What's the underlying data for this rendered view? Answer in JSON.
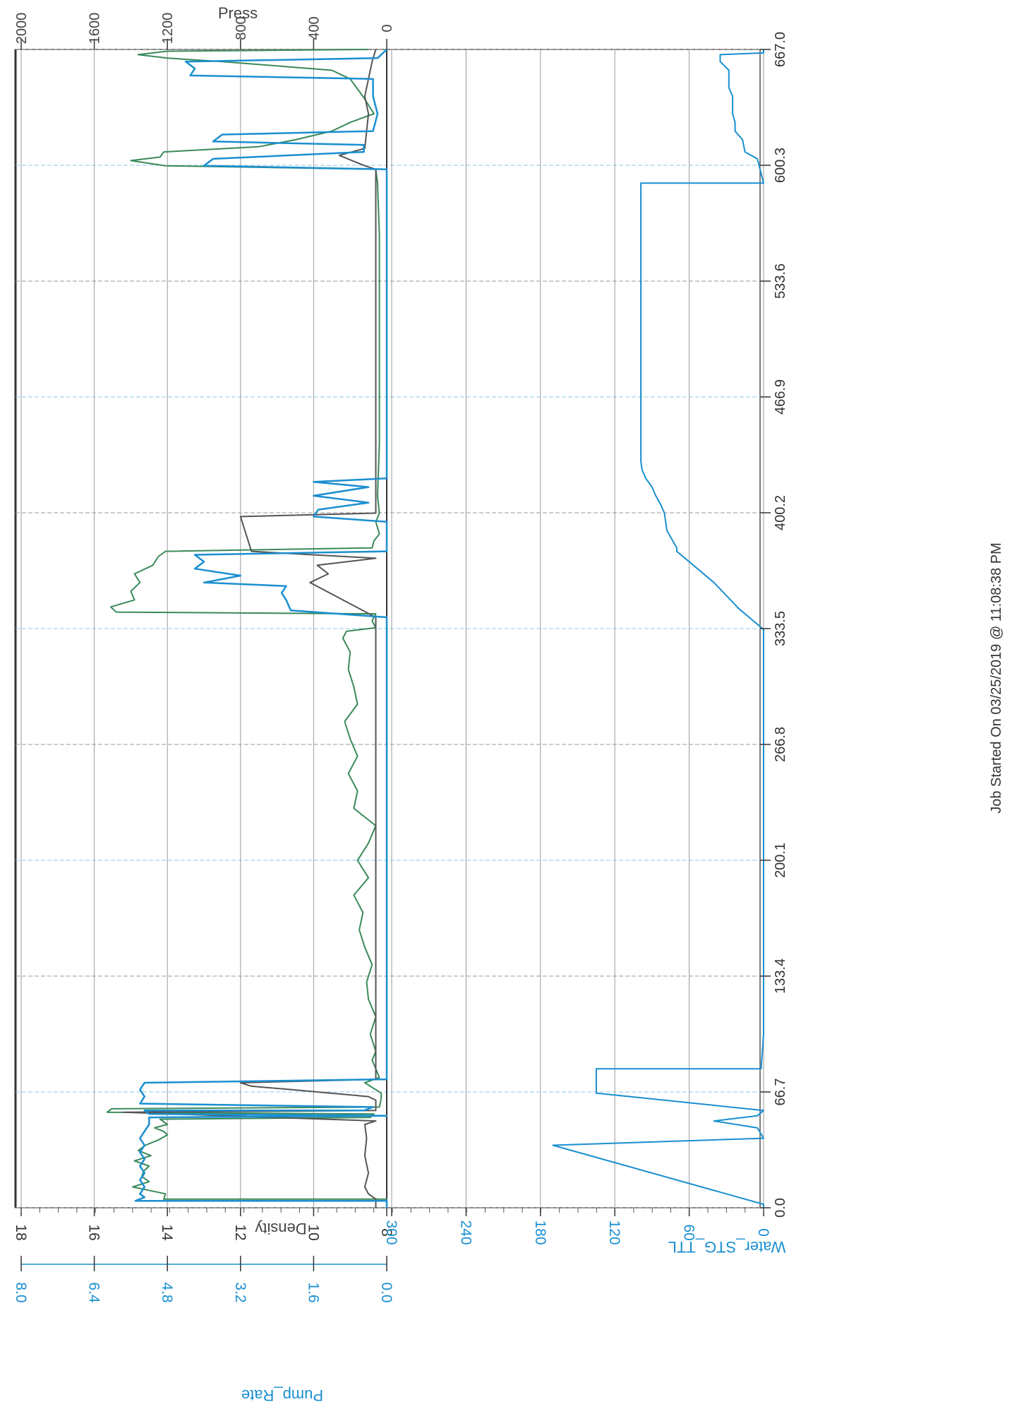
{
  "footer_text": "Job Started On 03/25/2019 @ 11:08:38 PM",
  "chart_data": {
    "type": "line",
    "orientation": "rotated-90-clockwise",
    "time_axis": {
      "ticks": [
        "0.0",
        "66.7",
        "133.4",
        "200.1",
        "266.8",
        "333.5",
        "400.2",
        "466.9",
        "533.6",
        "600.3",
        "667.0"
      ],
      "range": [
        0,
        667
      ]
    },
    "axes": {
      "press": {
        "label": "Press",
        "ticks": [
          "0",
          "400",
          "800",
          "1200",
          "1600",
          "2000"
        ],
        "range": [
          0,
          2000
        ],
        "color": "#444444"
      },
      "density": {
        "label": "Density",
        "ticks": [
          "8",
          "10",
          "12",
          "14",
          "16",
          "18"
        ],
        "range": [
          8,
          18
        ],
        "color": "#444444"
      },
      "pump_rate": {
        "label": "Pump_Rate",
        "ticks": [
          "0.0",
          "1.6",
          "3.2",
          "4.8",
          "6.4",
          "8.0"
        ],
        "range": [
          0,
          8
        ],
        "color": "#1a8fd0"
      },
      "water": {
        "label": "Water_STG_TTL",
        "ticks": [
          "0",
          "60",
          "120",
          "180",
          "240",
          "300"
        ],
        "range": [
          0,
          300
        ],
        "color": "#1a8fd0"
      }
    },
    "grid": true,
    "series": [
      {
        "name": "Press",
        "color": "#3a8a5a",
        "axis": "press",
        "points": [
          [
            0,
            0
          ],
          [
            5,
            0
          ],
          [
            5,
            1220
          ],
          [
            8,
            1210
          ],
          [
            12,
            1390
          ],
          [
            15,
            1300
          ],
          [
            18,
            1340
          ],
          [
            21,
            1330
          ],
          [
            24,
            1300
          ],
          [
            27,
            1380
          ],
          [
            30,
            1290
          ],
          [
            33,
            1360
          ],
          [
            36,
            1320
          ],
          [
            39,
            1250
          ],
          [
            42,
            1200
          ],
          [
            44,
            1220
          ],
          [
            46,
            1270
          ],
          [
            48,
            1200
          ],
          [
            51,
            1240
          ],
          [
            52,
            90
          ],
          [
            54,
            70
          ],
          [
            55,
            1530
          ],
          [
            57,
            1505
          ],
          [
            58,
            40
          ],
          [
            63,
            30
          ],
          [
            66,
            30
          ],
          [
            72,
            120
          ],
          [
            75,
            40
          ],
          [
            80,
            60
          ],
          [
            85,
            80
          ],
          [
            90,
            60
          ],
          [
            100,
            90
          ],
          [
            110,
            60
          ],
          [
            120,
            100
          ],
          [
            130,
            110
          ],
          [
            140,
            80
          ],
          [
            150,
            120
          ],
          [
            160,
            150
          ],
          [
            170,
            130
          ],
          [
            180,
            180
          ],
          [
            190,
            100
          ],
          [
            200,
            160
          ],
          [
            210,
            100
          ],
          [
            220,
            60
          ],
          [
            230,
            180
          ],
          [
            240,
            160
          ],
          [
            250,
            210
          ],
          [
            260,
            160
          ],
          [
            270,
            200
          ],
          [
            280,
            230
          ],
          [
            290,
            160
          ],
          [
            300,
            180
          ],
          [
            310,
            210
          ],
          [
            320,
            200
          ],
          [
            328,
            240
          ],
          [
            332,
            220
          ],
          [
            334,
            60
          ],
          [
            338,
            80
          ],
          [
            342,
            60
          ],
          [
            343,
            1480
          ],
          [
            346,
            1510
          ],
          [
            350,
            1380
          ],
          [
            355,
            1400
          ],
          [
            360,
            1350
          ],
          [
            365,
            1380
          ],
          [
            370,
            1280
          ],
          [
            375,
            1250
          ],
          [
            378,
            1210
          ],
          [
            380,
            80
          ],
          [
            384,
            70
          ],
          [
            388,
            40
          ],
          [
            395,
            60
          ],
          [
            400,
            40
          ],
          [
            410,
            50
          ],
          [
            440,
            40
          ],
          [
            500,
            40
          ],
          [
            560,
            40
          ],
          [
            590,
            50
          ],
          [
            598,
            60
          ],
          [
            600,
            1210
          ],
          [
            603,
            1400
          ],
          [
            605,
            1240
          ],
          [
            608,
            1220
          ],
          [
            611,
            700
          ],
          [
            615,
            500
          ],
          [
            620,
            300
          ],
          [
            625,
            200
          ],
          [
            630,
            70
          ],
          [
            640,
            130
          ],
          [
            650,
            200
          ],
          [
            655,
            300
          ],
          [
            660,
            900
          ],
          [
            662,
            1200
          ],
          [
            664,
            1360
          ],
          [
            666,
            1200
          ],
          [
            667,
            100
          ]
        ]
      },
      {
        "name": "Density",
        "color": "#555555",
        "axis": "density",
        "points": [
          [
            0,
            8.3
          ],
          [
            5,
            8.3
          ],
          [
            8,
            8.5
          ],
          [
            12,
            8.6
          ],
          [
            20,
            8.5
          ],
          [
            30,
            8.6
          ],
          [
            40,
            8.55
          ],
          [
            48,
            8.6
          ],
          [
            50,
            8.3
          ],
          [
            55,
            15.2
          ],
          [
            56,
            8.3
          ],
          [
            62,
            8.3
          ],
          [
            64,
            8.5
          ],
          [
            68,
            10.6
          ],
          [
            70,
            11.7
          ],
          [
            72,
            12.0
          ],
          [
            74,
            8.3
          ],
          [
            80,
            8.3
          ],
          [
            200,
            8.3
          ],
          [
            330,
            8.3
          ],
          [
            340,
            8.3
          ],
          [
            360,
            10.1
          ],
          [
            365,
            9.6
          ],
          [
            370,
            9.9
          ],
          [
            374,
            8.3
          ],
          [
            378,
            11.7
          ],
          [
            398,
            12.0
          ],
          [
            400,
            8.3
          ],
          [
            500,
            8.3
          ],
          [
            598,
            8.3
          ],
          [
            600,
            8.6
          ],
          [
            606,
            9.3
          ],
          [
            610,
            8.6
          ],
          [
            630,
            8.5
          ],
          [
            640,
            8.6
          ],
          [
            660,
            8.4
          ],
          [
            667,
            8.3
          ]
        ]
      },
      {
        "name": "Pump_Rate",
        "color": "#1a8fd0",
        "axis": "pump_rate",
        "points": [
          [
            0,
            0
          ],
          [
            4,
            0
          ],
          [
            4,
            5.5
          ],
          [
            6,
            5.3
          ],
          [
            8,
            5.4
          ],
          [
            12,
            5.3
          ],
          [
            16,
            5.4
          ],
          [
            20,
            5.3
          ],
          [
            24,
            5.4
          ],
          [
            28,
            5.3
          ],
          [
            32,
            5.4
          ],
          [
            36,
            5.3
          ],
          [
            40,
            5.4
          ],
          [
            44,
            5.3
          ],
          [
            48,
            5.2
          ],
          [
            52,
            5.2
          ],
          [
            53,
            0
          ],
          [
            54,
            5.2
          ],
          [
            56,
            5.3
          ],
          [
            56,
            0.5
          ],
          [
            58,
            0.3
          ],
          [
            60,
            5.4
          ],
          [
            64,
            5.3
          ],
          [
            68,
            5.4
          ],
          [
            72,
            5.3
          ],
          [
            74,
            0
          ],
          [
            78,
            0
          ],
          [
            200,
            0
          ],
          [
            330,
            0
          ],
          [
            340,
            0
          ],
          [
            344,
            2.1
          ],
          [
            350,
            2.2
          ],
          [
            354,
            2.3
          ],
          [
            358,
            2.2
          ],
          [
            360,
            4.0
          ],
          [
            364,
            3.2
          ],
          [
            368,
            4.2
          ],
          [
            372,
            4.0
          ],
          [
            376,
            4.2
          ],
          [
            378,
            0
          ],
          [
            395,
            0
          ],
          [
            398,
            1.6
          ],
          [
            402,
            1.5
          ],
          [
            406,
            0.4
          ],
          [
            410,
            1.6
          ],
          [
            415,
            0.4
          ],
          [
            418,
            1.6
          ],
          [
            420,
            0
          ],
          [
            500,
            0
          ],
          [
            598,
            0
          ],
          [
            600,
            4.0
          ],
          [
            604,
            3.8
          ],
          [
            608,
            0.5
          ],
          [
            612,
            0.5
          ],
          [
            614,
            3.8
          ],
          [
            618,
            3.6
          ],
          [
            620,
            0.3
          ],
          [
            630,
            0.2
          ],
          [
            640,
            0.3
          ],
          [
            650,
            0.3
          ],
          [
            652,
            4.3
          ],
          [
            656,
            4.2
          ],
          [
            660,
            4.4
          ],
          [
            662,
            0.2
          ],
          [
            667,
            0
          ]
        ]
      },
      {
        "name": "Water_STG_TTL",
        "color": "#1a8fd0",
        "axis": "water",
        "points": [
          [
            0,
            0
          ],
          [
            2,
            0
          ],
          [
            36,
            170
          ],
          [
            40,
            0
          ],
          [
            46,
            5
          ],
          [
            50,
            40
          ],
          [
            53,
            5
          ],
          [
            56,
            0
          ],
          [
            66,
            135
          ],
          [
            70,
            135
          ],
          [
            80,
            135
          ],
          [
            80,
            2
          ],
          [
            100,
            0
          ],
          [
            200,
            0
          ],
          [
            333,
            0
          ],
          [
            345,
            20
          ],
          [
            360,
            40
          ],
          [
            378,
            70
          ],
          [
            380,
            70
          ],
          [
            390,
            78
          ],
          [
            400,
            80
          ],
          [
            405,
            83
          ],
          [
            410,
            87
          ],
          [
            415,
            90
          ],
          [
            420,
            95
          ],
          [
            425,
            98
          ],
          [
            430,
            99
          ],
          [
            500,
            99
          ],
          [
            580,
            99
          ],
          [
            590,
            99
          ],
          [
            590,
            0
          ],
          [
            604,
            5
          ],
          [
            608,
            15
          ],
          [
            615,
            17
          ],
          [
            620,
            23
          ],
          [
            625,
            23
          ],
          [
            630,
            25
          ],
          [
            640,
            25
          ],
          [
            645,
            28
          ],
          [
            655,
            28
          ],
          [
            660,
            35
          ],
          [
            664,
            35
          ],
          [
            665,
            0
          ],
          [
            667,
            0
          ]
        ]
      }
    ]
  }
}
